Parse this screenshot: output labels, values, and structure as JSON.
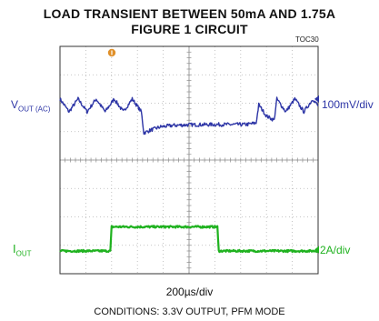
{
  "title_line1": "LOAD TRANSIENT BETWEEN 50mA AND 1.75A",
  "title_line2": "FIGURE 1 CIRCUIT",
  "figure_id": "TOC30",
  "conditions": "CONDITIONS: 3.3V OUTPUT, PFM MODE",
  "colors": {
    "vout": "#2d35a6",
    "iout": "#1fb21f",
    "grid": "#b5b5b5",
    "frame": "#333333",
    "trigger": "#e0902a"
  },
  "chart_data": {
    "type": "line",
    "x_scale": "200µs/div",
    "grid": true,
    "x_divisions": 10,
    "y_divisions": 8,
    "series": [
      {
        "name": "V",
        "name_sub": "OUT (AC)",
        "scale": "100mV/div",
        "t_div": [
          0,
          0.35,
          0.7,
          1.05,
          1.4,
          1.75,
          2.1,
          2.45,
          2.8,
          3.15,
          3.25,
          3.5,
          3.9,
          4.4,
          5,
          6,
          7.2,
          7.6,
          7.7,
          8.0,
          8.3,
          8.4,
          8.75,
          9.1,
          9.45,
          9.8,
          10
        ],
        "y_div": [
          6.15,
          5.7,
          6.15,
          5.7,
          6.15,
          5.7,
          6.15,
          5.7,
          6.15,
          5.7,
          4.95,
          5.05,
          5.17,
          5.22,
          5.24,
          5.25,
          5.25,
          5.3,
          5.95,
          5.55,
          5.4,
          6.15,
          5.7,
          6.15,
          5.7,
          6.15,
          5.9
        ]
      },
      {
        "name": "I",
        "name_sub": "OUT",
        "scale": "2A/div",
        "t_div": [
          0,
          1.95,
          2.0,
          6.1,
          6.15,
          10
        ],
        "y_div": [
          0.8,
          0.8,
          1.65,
          1.65,
          0.8,
          0.8
        ]
      }
    ]
  }
}
